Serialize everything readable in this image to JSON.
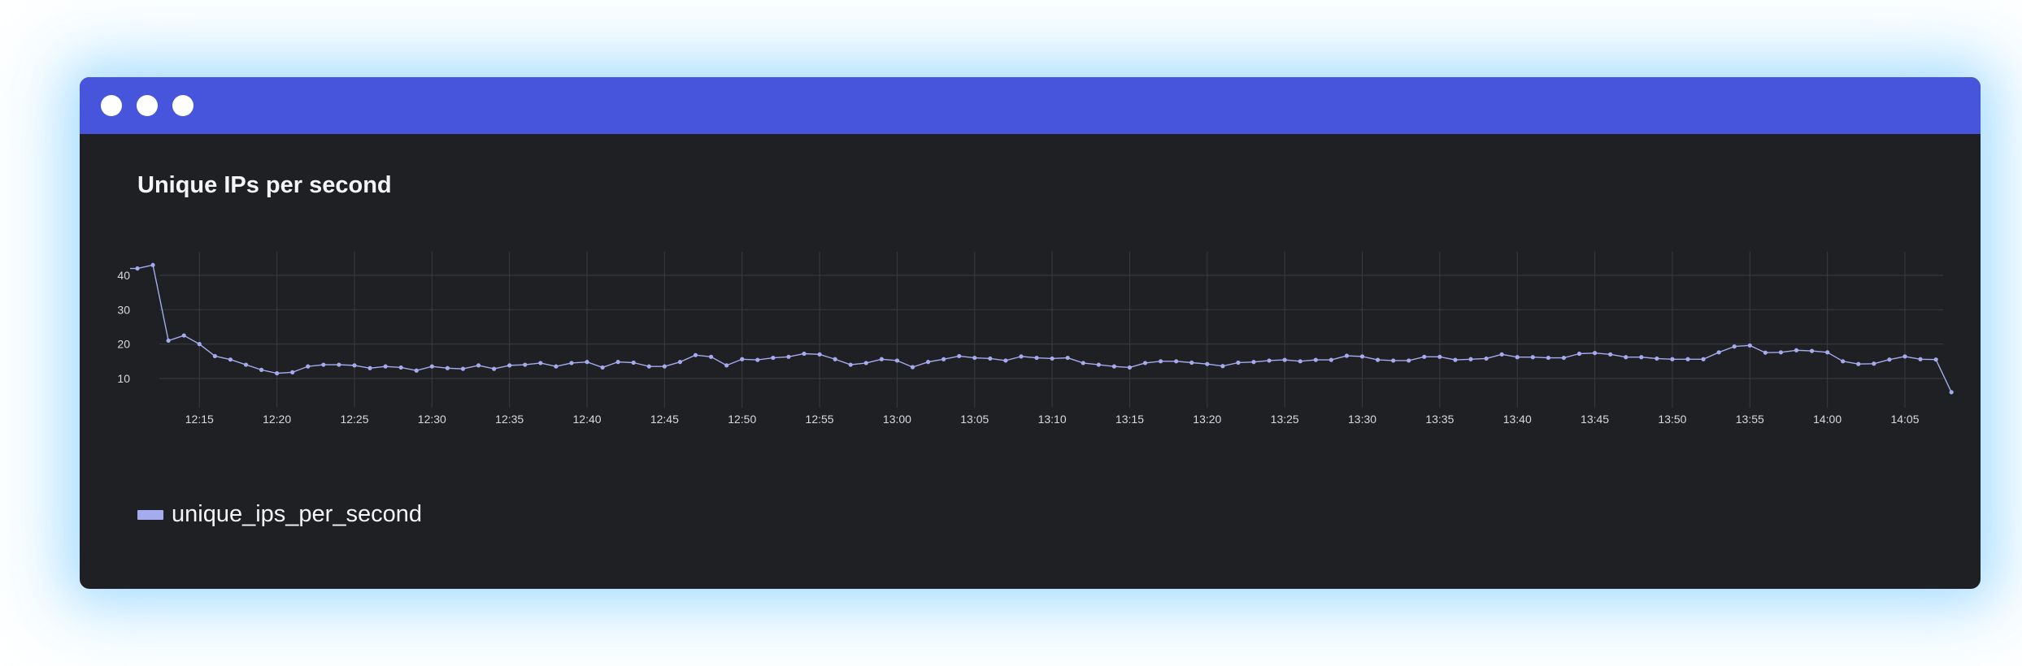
{
  "window": {
    "controls": [
      "window-dot",
      "window-dot",
      "window-dot"
    ]
  },
  "colors": {
    "titlebar": "#4755dc",
    "panel": "#1f2023",
    "series": "#a4abee",
    "grid": "#3a3b40"
  },
  "chart_data": {
    "type": "line",
    "title": "Unique IPs per second",
    "xlabel": "",
    "ylabel": "",
    "ylim": [
      0,
      45
    ],
    "grid": true,
    "legend_position": "bottom-left",
    "y_ticks": [
      "40",
      "30",
      "20",
      "10"
    ],
    "y_tick_values": [
      40,
      30,
      20,
      10
    ],
    "x_ticks": [
      "12:15",
      "12:20",
      "12:25",
      "12:30",
      "12:35",
      "12:40",
      "12:45",
      "12:50",
      "12:55",
      "13:00",
      "13:05",
      "13:10",
      "13:15",
      "13:20",
      "13:25",
      "13:30",
      "13:35",
      "13:40",
      "13:45",
      "13:50",
      "13:55",
      "14:00",
      "14:05"
    ],
    "x_start": "12:11",
    "x_interval_seconds": 60,
    "series": [
      {
        "name": "unique_ips_per_second",
        "values": [
          42,
          43,
          21,
          22.5,
          20,
          16.5,
          15.5,
          14,
          12.5,
          11.5,
          11.8,
          13.5,
          14,
          14,
          13.8,
          13,
          13.5,
          13.2,
          12.3,
          13.5,
          13,
          12.8,
          13.8,
          12.8,
          13.8,
          14,
          14.5,
          13.5,
          14.5,
          14.8,
          13.2,
          14.8,
          14.6,
          13.5,
          13.5,
          14.8,
          16.8,
          16.3,
          13.8,
          15.6,
          15.4,
          16,
          16.3,
          17.2,
          17,
          15.6,
          14,
          14.5,
          15.6,
          15.2,
          13.3,
          14.8,
          15.6,
          16.5,
          16,
          15.8,
          15.2,
          16.4,
          16,
          15.8,
          16,
          14.5,
          14,
          13.5,
          13.2,
          14.5,
          15,
          15,
          14.6,
          14.2,
          13.6,
          14.6,
          14.8,
          15.2,
          15.4,
          15,
          15.4,
          15.4,
          16.6,
          16.4,
          15.4,
          15.2,
          15.2,
          16.3,
          16.3,
          15.4,
          15.6,
          15.8,
          17,
          16.2,
          16.2,
          16,
          16,
          17.2,
          17.4,
          17,
          16.2,
          16.2,
          15.8,
          15.6,
          15.6,
          15.6,
          17.6,
          19.3,
          19.6,
          17.5,
          17.6,
          18.2,
          18,
          17.6,
          15,
          14.2,
          14.3,
          15.5,
          16.4,
          15.6,
          15.5,
          6
        ]
      }
    ]
  },
  "legend": {
    "label": "unique_ips_per_second"
  }
}
